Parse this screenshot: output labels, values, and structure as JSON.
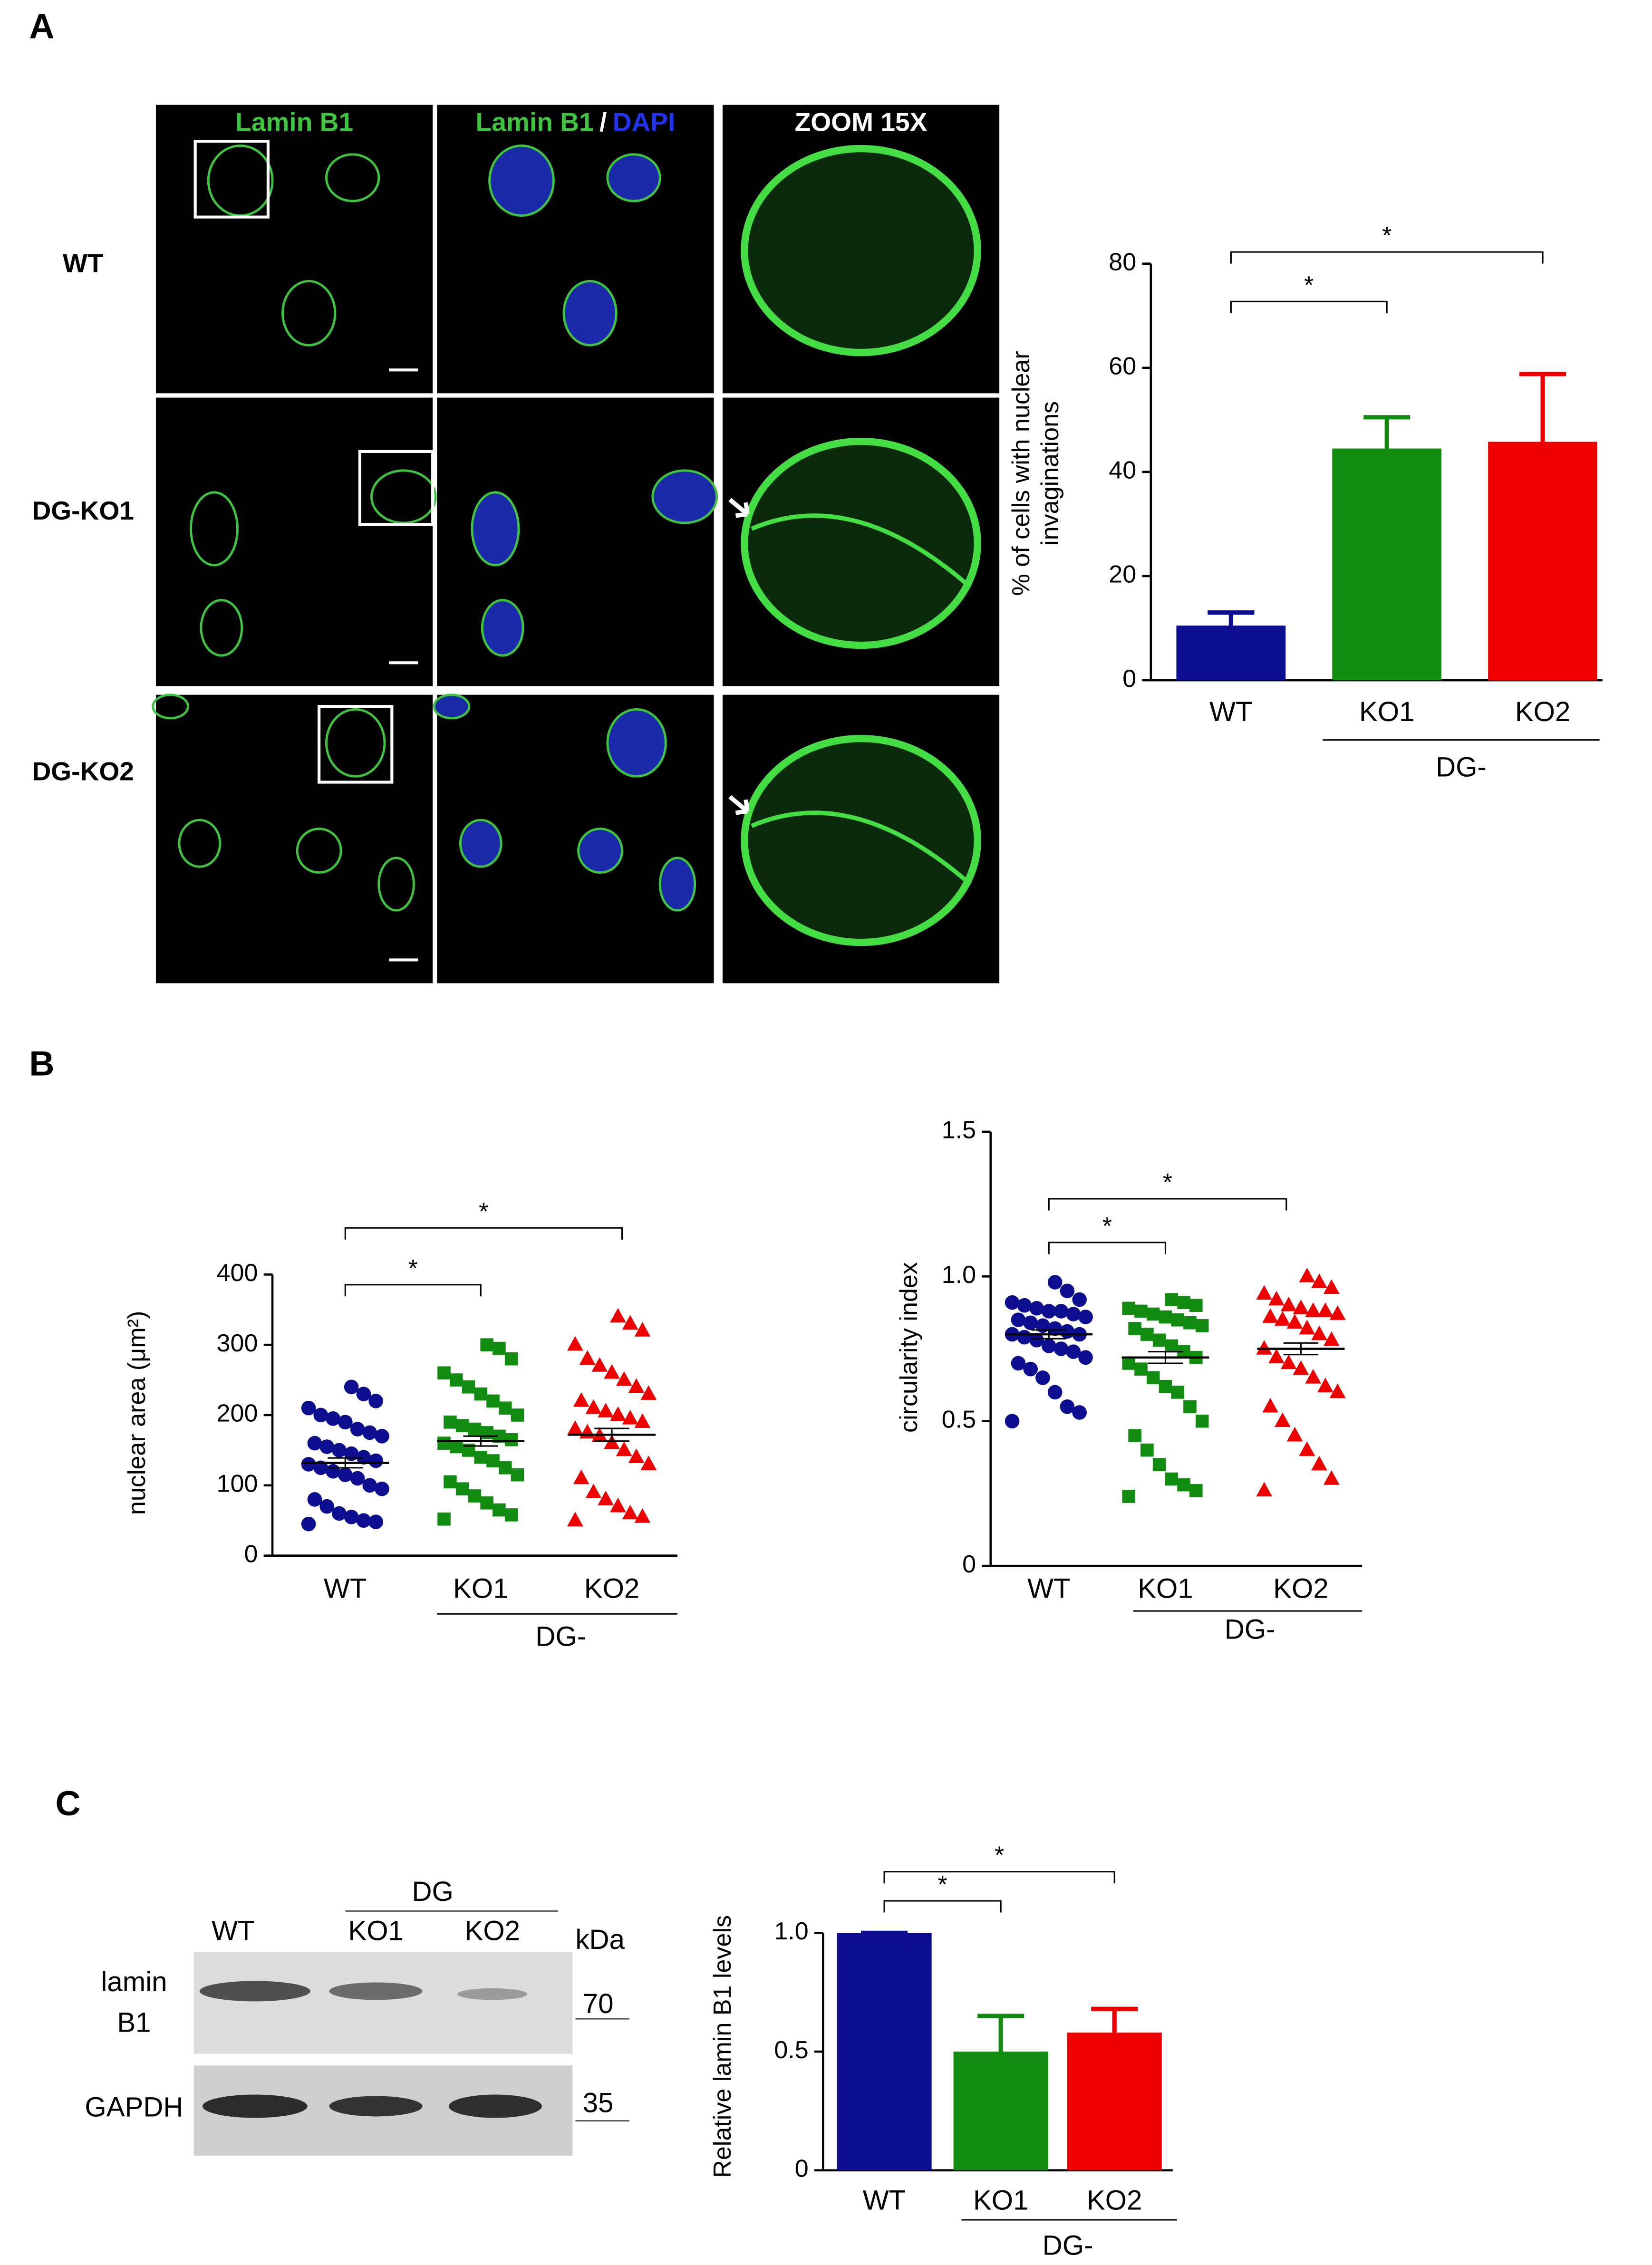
{
  "panel_labels": [
    "A",
    "B",
    "C"
  ],
  "microscopy": {
    "columns": [
      [
        "Lamin B1"
      ],
      [
        "Lamin B1",
        "/",
        "DAPI"
      ],
      [
        "ZOOM 15X"
      ]
    ],
    "rows": [
      "WT",
      "DG-KO1",
      "DG-KO2"
    ]
  },
  "blot": {
    "lanes": [
      "WT",
      "KO1",
      "KO2"
    ],
    "group": "DG",
    "unit": "kDa",
    "rows": [
      {
        "label": [
          "lamin",
          "B1"
        ],
        "marker": 70
      },
      {
        "label": [
          "GAPDH"
        ],
        "marker": 35
      }
    ]
  },
  "chart_data": [
    {
      "type": "bar",
      "categories": [
        "WT",
        "KO1",
        "KO2"
      ],
      "values": [
        10.5,
        44.5,
        45.8
      ],
      "errors": [
        2.5,
        6,
        13
      ],
      "colors": [
        "#0d0d8f",
        "#118c11",
        "#ee0000"
      ],
      "ylim": [
        0,
        80
      ],
      "yticks": [
        0,
        20,
        40,
        60,
        80
      ],
      "ylabel": [
        "% of cells with nuclear",
        "invaginations"
      ],
      "group_label": "DG-",
      "annotations": [
        "*",
        "*"
      ]
    },
    {
      "type": "dot",
      "categories": [
        "WT",
        "KO1",
        "KO2"
      ],
      "ylim": [
        0,
        400
      ],
      "yticks": [
        0,
        100,
        200,
        300,
        400
      ],
      "ylabel": [
        "nuclear area (μm²)"
      ],
      "group_label": "DG-",
      "annotations": [
        "*",
        "*"
      ],
      "groups": [
        {
          "color": "#0d0d8f",
          "marker": "circle",
          "mean": 132,
          "sem": 7,
          "values": [
            45,
            48,
            50,
            55,
            60,
            70,
            80,
            95,
            100,
            110,
            115,
            120,
            125,
            130,
            135,
            140,
            145,
            150,
            155,
            160,
            170,
            175,
            180,
            190,
            195,
            200,
            210,
            220,
            230,
            240
          ]
        },
        {
          "color": "#118c11",
          "marker": "square",
          "mean": 163,
          "sem": 7,
          "values": [
            52,
            58,
            65,
            75,
            85,
            95,
            105,
            115,
            125,
            135,
            140,
            150,
            155,
            160,
            165,
            170,
            175,
            180,
            185,
            190,
            200,
            210,
            220,
            230,
            240,
            250,
            260,
            280,
            295,
            300
          ]
        },
        {
          "color": "#ee0000",
          "marker": "triangle",
          "mean": 172,
          "sem": 9,
          "values": [
            50,
            55,
            60,
            70,
            80,
            90,
            110,
            130,
            140,
            150,
            160,
            170,
            175,
            180,
            190,
            195,
            200,
            205,
            210,
            220,
            230,
            240,
            250,
            260,
            270,
            280,
            300,
            320,
            330,
            340
          ]
        }
      ]
    },
    {
      "type": "dot",
      "categories": [
        "WT",
        "KO1",
        "KO2"
      ],
      "ylim": [
        0,
        1.5
      ],
      "yticks": [
        0,
        0.5,
        {
          "value": 1,
          "label": "1.0"
        },
        {
          "value": 1.5,
          "label": "1.5"
        }
      ],
      "ylabel": [
        "circularity index"
      ],
      "group_label": "DG-",
      "annotations": [
        "*",
        "*"
      ],
      "groups": [
        {
          "color": "#0d0d8f",
          "marker": "circle",
          "mean": 0.8,
          "sem": 0.015,
          "values": [
            0.5,
            0.53,
            0.55,
            0.6,
            0.65,
            0.68,
            0.7,
            0.72,
            0.74,
            0.75,
            0.76,
            0.78,
            0.79,
            0.8,
            0.8,
            0.81,
            0.82,
            0.83,
            0.84,
            0.85,
            0.86,
            0.87,
            0.88,
            0.88,
            0.89,
            0.9,
            0.91,
            0.92,
            0.95,
            0.98
          ]
        },
        {
          "color": "#118c11",
          "marker": "square",
          "mean": 0.72,
          "sem": 0.02,
          "values": [
            0.24,
            0.26,
            0.28,
            0.3,
            0.35,
            0.4,
            0.45,
            0.5,
            0.55,
            0.6,
            0.62,
            0.65,
            0.68,
            0.7,
            0.72,
            0.74,
            0.76,
            0.78,
            0.8,
            0.82,
            0.83,
            0.84,
            0.85,
            0.86,
            0.87,
            0.88,
            0.89,
            0.9,
            0.91,
            0.92
          ]
        },
        {
          "color": "#ee0000",
          "marker": "triangle",
          "mean": 0.75,
          "sem": 0.02,
          "values": [
            0.26,
            0.3,
            0.35,
            0.4,
            0.45,
            0.5,
            0.55,
            0.6,
            0.62,
            0.65,
            0.68,
            0.7,
            0.72,
            0.75,
            0.78,
            0.8,
            0.82,
            0.84,
            0.85,
            0.86,
            0.87,
            0.88,
            0.88,
            0.89,
            0.9,
            0.92,
            0.94,
            0.96,
            0.98,
            1.0
          ]
        }
      ]
    },
    {
      "type": "bar",
      "categories": [
        "WT",
        "KO1",
        "KO2"
      ],
      "values": [
        1.0,
        0.5,
        0.58
      ],
      "errors": [
        0,
        0.15,
        0.1
      ],
      "colors": [
        "#0d0d8f",
        "#118c11",
        "#ee0000"
      ],
      "ylim": [
        0,
        1
      ],
      "yticks": [
        0,
        0.5,
        {
          "value": 1,
          "label": "1.0"
        }
      ],
      "ylabel": [
        "Relative lamin B1 levels"
      ],
      "group_label": "DG-",
      "annotations": [
        "*",
        "*"
      ]
    }
  ]
}
